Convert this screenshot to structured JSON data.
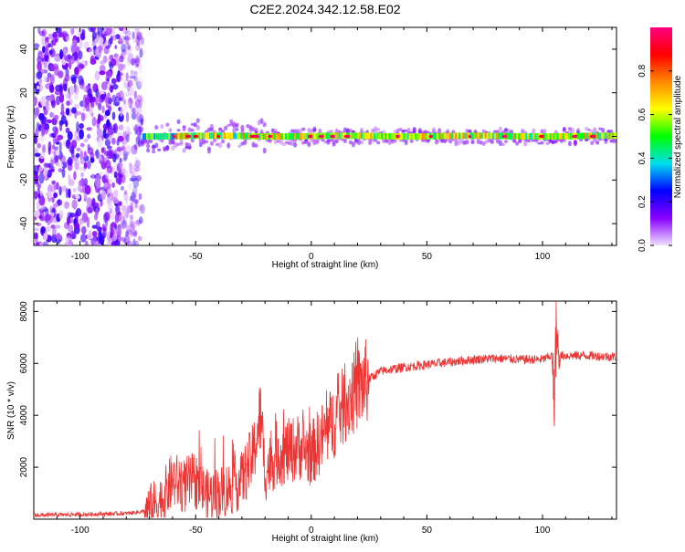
{
  "title": "C2E2.2024.342.12.58.E02",
  "chart_data": [
    {
      "type": "heatmap",
      "xlabel": "Height of straight line (km)",
      "ylabel": "Frequency (Hz)",
      "xlim": [
        -120,
        132
      ],
      "ylim": [
        -50,
        50
      ],
      "x_ticks": [
        -100,
        -50,
        0,
        50,
        100
      ],
      "y_ticks": [
        -40,
        -20,
        0,
        20,
        40
      ],
      "colorbar": {
        "label": "Normalized spectral amplitude",
        "range": [
          0,
          1
        ],
        "ticks": [
          0.0,
          0.2,
          0.4,
          0.6,
          0.8
        ],
        "colors": [
          "#f0e0ff",
          "#8800ff",
          "#0000ff",
          "#00ddee",
          "#00ff00",
          "#ffff00",
          "#ff8800",
          "#ff0000",
          "#ff0080"
        ]
      },
      "noise_region_x": [
        -120,
        -73
      ],
      "band_center_hz": 0
    },
    {
      "type": "line",
      "xlabel": "Height of straight line (km)",
      "ylabel": "SNR (10 * v/v)",
      "xlim": [
        -120,
        132
      ],
      "ylim": [
        0,
        8400
      ],
      "x_ticks": [
        -100,
        -50,
        0,
        50,
        100
      ],
      "y_ticks": [
        2000,
        4000,
        6000,
        8000
      ],
      "color": "#ee3333",
      "series": [
        {
          "x": [
            -120,
            -100,
            -80,
            -72,
            -65,
            -60,
            -55,
            -50,
            -45,
            -40,
            -35,
            -30,
            -25,
            -22,
            -20,
            -15,
            -10,
            -5,
            0,
            5,
            10,
            15,
            20,
            25,
            30,
            40,
            50,
            60,
            70,
            80,
            90,
            100,
            104,
            105,
            106,
            107,
            108,
            110,
            120,
            132
          ],
          "y": [
            150,
            180,
            220,
            300,
            700,
            1500,
            1300,
            1500,
            900,
            1000,
            1200,
            1500,
            2500,
            4000,
            1800,
            2500,
            2600,
            2800,
            2500,
            3200,
            3800,
            4500,
            5000,
            5400,
            5700,
            5850,
            5950,
            6050,
            6150,
            6200,
            6150,
            6150,
            6300,
            4500,
            7500,
            6100,
            6300,
            6300,
            6300,
            6250
          ]
        }
      ]
    }
  ]
}
